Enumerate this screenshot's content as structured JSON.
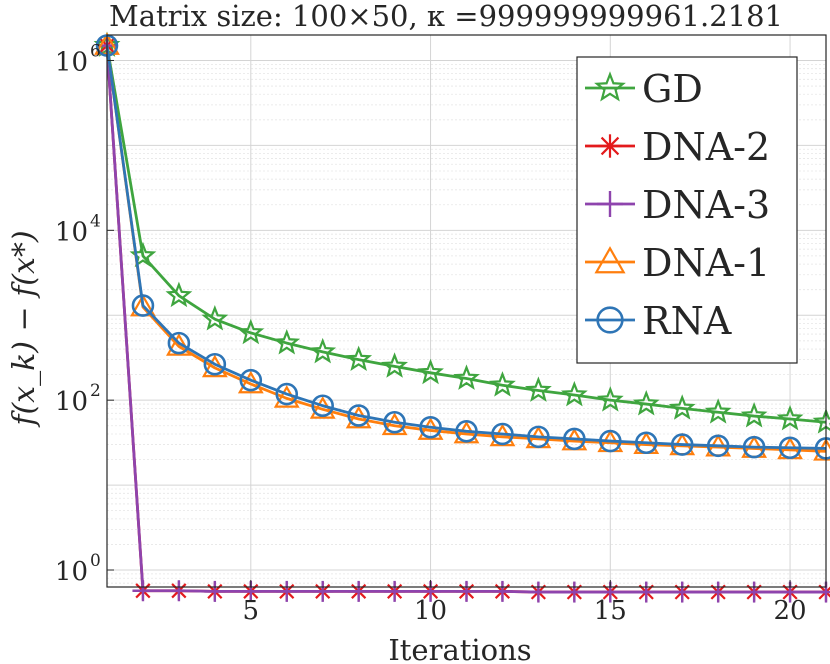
{
  "chart_data": {
    "type": "line",
    "title": "Matrix size: 100×50, κ =999999999961.2181",
    "xlabel": "Iterations",
    "ylabel": "f(x_k) − f(x*)",
    "yscale": "log",
    "xlim": [
      1,
      21
    ],
    "ylim_log10": [
      -0.2,
      6.3
    ],
    "x_ticks": [
      5,
      10,
      15,
      20
    ],
    "y_ticks": [
      {
        "base": "10",
        "exp": "0",
        "log10": 0
      },
      {
        "base": "10",
        "exp": "2",
        "log10": 2
      },
      {
        "base": "10",
        "exp": "4",
        "log10": 4
      },
      {
        "base": "10",
        "exp": "6",
        "log10": 6
      }
    ],
    "grid": true,
    "legend_position": "top-right",
    "x": [
      1,
      2,
      3,
      4,
      5,
      6,
      7,
      8,
      9,
      10,
      11,
      12,
      13,
      14,
      15,
      16,
      17,
      18,
      19,
      20,
      21
    ],
    "series": [
      {
        "name": "GD",
        "color": "#3fa53f",
        "marker": "star",
        "values": [
          1500000,
          5000,
          1700,
          900,
          620,
          470,
          370,
          300,
          250,
          210,
          180,
          150,
          130,
          115,
          100,
          90,
          80,
          72,
          65,
          60,
          55
        ]
      },
      {
        "name": "DNA-2",
        "color": "#e31a1c",
        "marker": "asterisk",
        "values": [
          1500000,
          0.57,
          0.57,
          0.56,
          0.56,
          0.56,
          0.56,
          0.56,
          0.56,
          0.56,
          0.56,
          0.56,
          0.55,
          0.55,
          0.55,
          0.55,
          0.55,
          0.55,
          0.55,
          0.55,
          0.55
        ]
      },
      {
        "name": "DNA-3",
        "color": "#8e44ad",
        "marker": "plus",
        "values": [
          1500000,
          0.57,
          0.57,
          0.56,
          0.56,
          0.56,
          0.56,
          0.56,
          0.56,
          0.56,
          0.56,
          0.56,
          0.55,
          0.55,
          0.55,
          0.55,
          0.55,
          0.55,
          0.55,
          0.55,
          0.55
        ]
      },
      {
        "name": "DNA-1",
        "color": "#ff7f0e",
        "marker": "triangle",
        "values": [
          1500000,
          1250,
          430,
          240,
          155,
          105,
          78,
          60,
          50,
          44,
          40,
          37,
          35,
          33,
          31.5,
          30,
          29,
          28,
          27,
          26,
          25
        ]
      },
      {
        "name": "RNA",
        "color": "#2e75b6",
        "marker": "circle",
        "values": [
          1500000,
          1300,
          470,
          265,
          172,
          118,
          86,
          66,
          55,
          48,
          43,
          40,
          37,
          35,
          33,
          31.5,
          30,
          29,
          28,
          27.5,
          27
        ]
      }
    ]
  }
}
